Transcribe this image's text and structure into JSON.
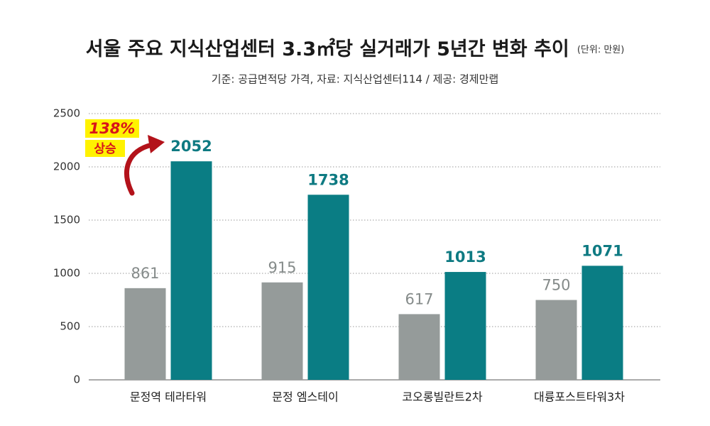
{
  "chart_data": {
    "type": "bar",
    "title": "서울 주요 지식산업센터 3.3㎡당 실거래가 5년간 변화 추이",
    "unit": "(단위: 만원)",
    "subtitle": "기준: 공급면적당 가격, 자료: 지식산업센터114 / 제공: 경제만랩",
    "categories": [
      "문정역 테라타워",
      "문정 엠스테이",
      "코오롱빌란트2차",
      "대륭포스트타워3차"
    ],
    "series": [
      {
        "color": "#959b9a",
        "label_color": "#858b8a",
        "values": [
          861,
          915,
          617,
          750
        ]
      },
      {
        "color": "#0a7d84",
        "label_color": "#0e7a82",
        "values": [
          2052,
          1738,
          1013,
          1071
        ]
      }
    ],
    "ylim": [
      0,
      2500
    ],
    "yticks": [
      0,
      500,
      1000,
      1500,
      2000,
      2500
    ],
    "grid": true,
    "annotation": {
      "text": "138%",
      "subtext": "상승"
    }
  }
}
